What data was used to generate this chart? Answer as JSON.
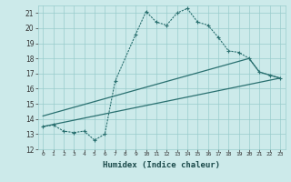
{
  "xlabel": "Humidex (Indice chaleur)",
  "background_color": "#cceaea",
  "grid_color": "#99cccc",
  "line_color": "#2a7070",
  "xlim": [
    -0.5,
    23.5
  ],
  "ylim": [
    12,
    21.5
  ],
  "yticks": [
    12,
    13,
    14,
    15,
    16,
    17,
    18,
    19,
    20,
    21
  ],
  "xticks": [
    0,
    1,
    2,
    3,
    4,
    5,
    6,
    7,
    8,
    9,
    10,
    11,
    12,
    13,
    14,
    15,
    16,
    17,
    18,
    19,
    20,
    21,
    22,
    23
  ],
  "curve1_x": [
    0,
    1,
    2,
    3,
    4,
    5,
    6,
    7,
    9,
    10,
    11,
    12,
    13,
    14,
    15,
    16,
    17,
    18,
    19,
    20,
    21,
    22,
    23
  ],
  "curve1_y": [
    13.5,
    13.6,
    13.2,
    13.1,
    13.2,
    12.6,
    13.0,
    16.5,
    19.6,
    21.1,
    20.4,
    20.2,
    21.0,
    21.3,
    20.4,
    20.2,
    19.4,
    18.5,
    18.4,
    18.0,
    17.1,
    16.9,
    16.7
  ],
  "curve2_x": [
    0,
    23
  ],
  "curve2_y": [
    13.5,
    16.7
  ],
  "curve3_x": [
    0,
    20,
    21,
    23
  ],
  "curve3_y": [
    14.2,
    18.0,
    17.1,
    16.7
  ]
}
